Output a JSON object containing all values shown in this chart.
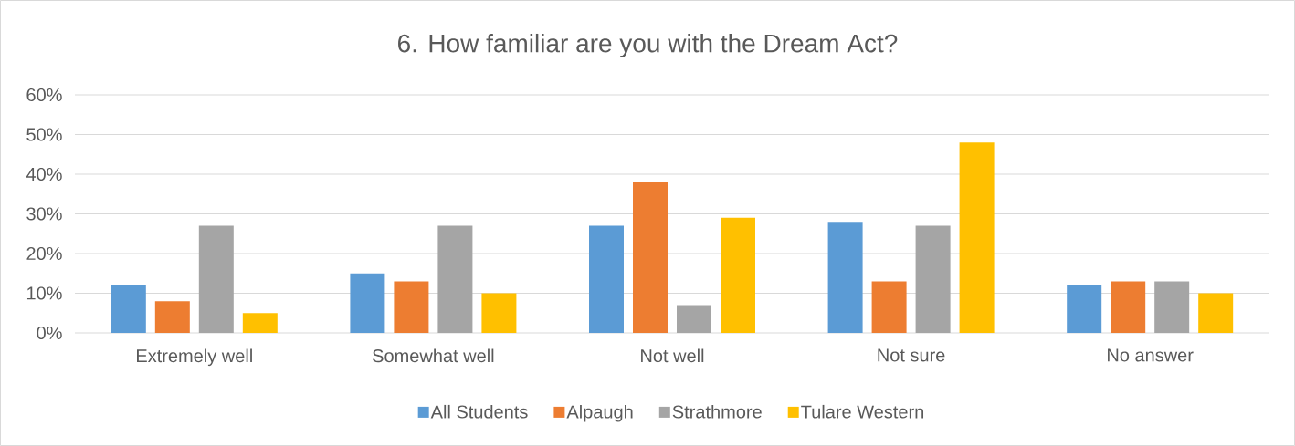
{
  "chart_data": {
    "type": "bar",
    "title": "6. How familiar are you with the Dream Act?",
    "categories": [
      "Extremely well",
      "Somewhat well",
      "Not well",
      "Not sure",
      "No answer"
    ],
    "series": [
      {
        "name": "All Students",
        "color": "#5b9bd5",
        "values": [
          12,
          15,
          27,
          28,
          12
        ]
      },
      {
        "name": "Alpaugh",
        "color": "#ed7d31",
        "values": [
          8,
          13,
          38,
          13,
          13
        ]
      },
      {
        "name": "Strathmore",
        "color": "#a5a5a5",
        "values": [
          27,
          27,
          7,
          27,
          13
        ]
      },
      {
        "name": "Tulare Western",
        "color": "#ffc000",
        "values": [
          5,
          10,
          29,
          48,
          10
        ]
      }
    ],
    "ylim": [
      0,
      60
    ],
    "yticks": [
      {
        "value": 0,
        "label": "0%"
      },
      {
        "value": 10,
        "label": "10%"
      },
      {
        "value": 20,
        "label": "20%"
      },
      {
        "value": 30,
        "label": "30%"
      },
      {
        "value": 40,
        "label": "40%"
      },
      {
        "value": 50,
        "label": "50%"
      },
      {
        "value": 60,
        "label": "60%"
      }
    ],
    "grid": "y",
    "legend": "bottom"
  }
}
